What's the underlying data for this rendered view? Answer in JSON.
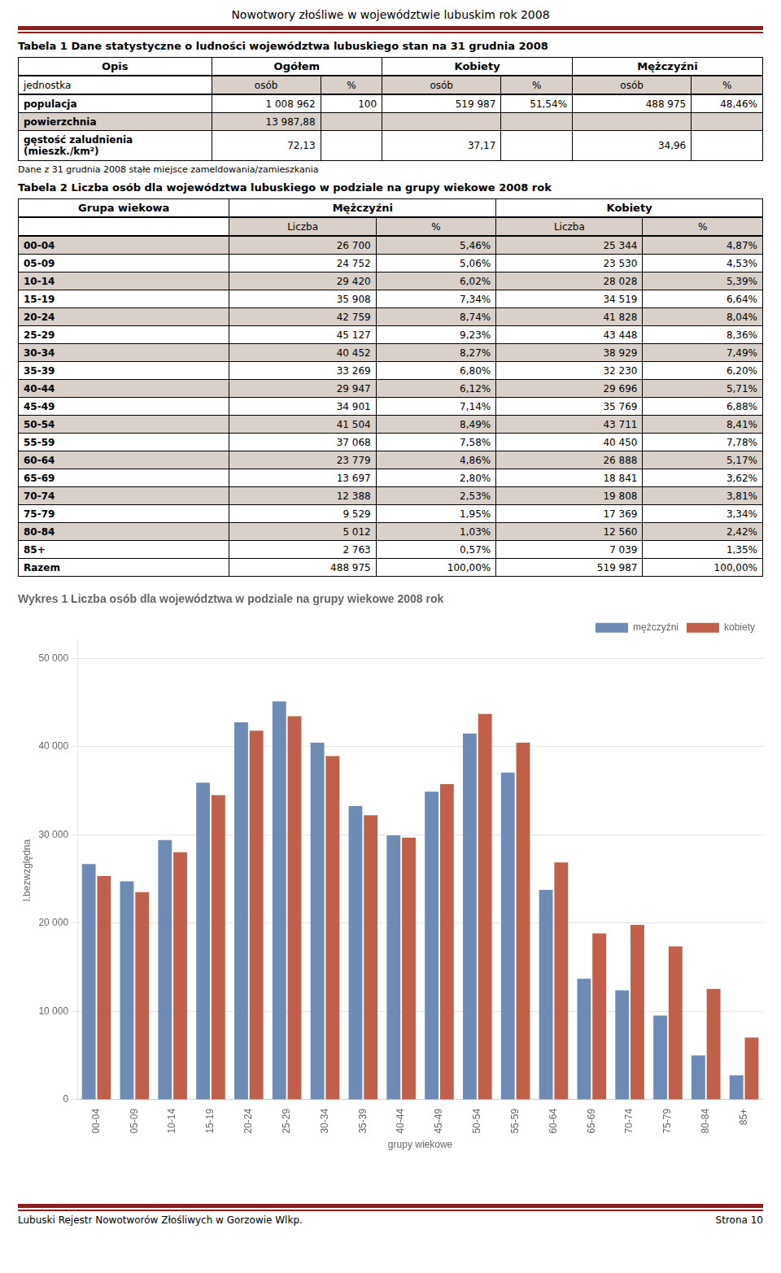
{
  "page_title": "Nowotwory złośliwe w województwie lubuskim rok 2008",
  "tables": [
    {
      "title": "Tabela 1 Dane statystyczne o ludności województwa lubuskiego stan na 31 grudnia 2008",
      "headers": [
        "Opis",
        "Ogółem",
        "Kobiety",
        "Mężczyźni"
      ],
      "subheaders": [
        "jednostka",
        "osób",
        "%",
        "osób",
        "%",
        "osób",
        "%"
      ],
      "rows": [
        [
          "populacja",
          "1 008 962",
          "100",
          "519 987",
          "51,54%",
          "488 975",
          "48,46%"
        ],
        [
          "powierzchnia",
          "13 987,88",
          null,
          null,
          null,
          null,
          null
        ],
        [
          "gęstość zaludnienia\n(mieszk./km²)",
          "72,13",
          null,
          "37,17",
          null,
          "34,96",
          null
        ]
      ],
      "note": "Dane z 31 grudnia 2008 stałe miejsce zameldowania/zamieszkania"
    },
    {
      "title": "Tabela 2 Liczba osób dla województwa lubuskiego w podziale na grupy wiekowe 2008 rok",
      "headers": [
        "Grupa wiekowa",
        "Mężczyźni",
        "Kobiety"
      ],
      "subheaders": [
        null,
        "Liczba",
        "%",
        "Liczba",
        "%"
      ],
      "rows": [
        [
          "00-04",
          "26 700",
          "5,46%",
          "25 344",
          "4,87%"
        ],
        [
          "05-09",
          "24 752",
          "5,06%",
          "23 530",
          "4,53%"
        ],
        [
          "10-14",
          "29 420",
          "6,02%",
          "28 028",
          "5,39%"
        ],
        [
          "15-19",
          "35 908",
          "7,34%",
          "34 519",
          "6,64%"
        ],
        [
          "20-24",
          "42 759",
          "8,74%",
          "41 828",
          "8,04%"
        ],
        [
          "25-29",
          "45 127",
          "9,23%",
          "43 448",
          "8,36%"
        ],
        [
          "30-34",
          "40 452",
          "8,27%",
          "38 929",
          "7,49%"
        ],
        [
          "35-39",
          "33 269",
          "6,80%",
          "32 230",
          "6,20%"
        ],
        [
          "40-44",
          "29 947",
          "6,12%",
          "29 696",
          "5,71%"
        ],
        [
          "45-49",
          "34 901",
          "7,14%",
          "35 769",
          "6,88%"
        ],
        [
          "50-54",
          "41 504",
          "8,49%",
          "43 711",
          "8,41%"
        ],
        [
          "55-59",
          "37 068",
          "7,58%",
          "40 450",
          "7,78%"
        ],
        [
          "60-64",
          "23 779",
          "4,86%",
          "26 888",
          "5,17%"
        ],
        [
          "65-69",
          "13 697",
          "2,80%",
          "18 841",
          "3,62%"
        ],
        [
          "70-74",
          "12 388",
          "2,53%",
          "19 808",
          "3,81%"
        ],
        [
          "75-79",
          "9 529",
          "1,95%",
          "17 369",
          "3,34%"
        ],
        [
          "80-84",
          "5 012",
          "1,03%",
          "12 560",
          "2,42%"
        ],
        [
          "85+",
          "2 763",
          "0,57%",
          "7 039",
          "1,35%"
        ],
        [
          "Razem",
          "488 975",
          "100,00%",
          "519 987",
          "100,00%"
        ]
      ]
    }
  ],
  "chart_data": {
    "type": "bar",
    "title": "Wykres 1 Liczba osób dla województwa w podziale na grupy wiekowe 2008 rok",
    "x_label": "grupy wiekowe",
    "y_label": "l.bezwzględna",
    "categories": [
      "00-04",
      "05-09",
      "10-14",
      "15-19",
      "20-24",
      "25-29",
      "30-34",
      "35-39",
      "40-44",
      "45-49",
      "50-54",
      "55-59",
      "60-64",
      "65-69",
      "70-74",
      "75-79",
      "80-84",
      "85+"
    ],
    "series": [
      {
        "name": "mężczyźni",
        "color": "#6E8BB5",
        "values": [
          26700,
          24752,
          29420,
          35908,
          42759,
          45127,
          40452,
          33269,
          29947,
          34901,
          41504,
          37068,
          23779,
          13697,
          12388,
          9529,
          5012,
          2763
        ]
      },
      {
        "name": "kobiety",
        "color": "#C0604A",
        "values": [
          25344,
          23530,
          28028,
          34519,
          41828,
          43448,
          38929,
          32230,
          29696,
          35769,
          43711,
          40450,
          26888,
          18841,
          19808,
          17369,
          12560,
          7039
        ]
      }
    ],
    "ylim": [
      0,
      52000
    ],
    "yticks": [
      0,
      {
        "value": 10000,
        "label": "10 000"
      },
      {
        "value": 20000,
        "label": "20 000"
      },
      {
        "value": 30000,
        "label": "30 000"
      },
      {
        "value": 40000,
        "label": "40 000"
      },
      {
        "value": 50000,
        "label": "50 000"
      }
    ],
    "grid": true,
    "legend": "upper right"
  },
  "footer_left": "Lubuski Rejestr Nowotworów Złośliwych w Gorzowie Wlkp.",
  "footer_right": "Strona 10"
}
